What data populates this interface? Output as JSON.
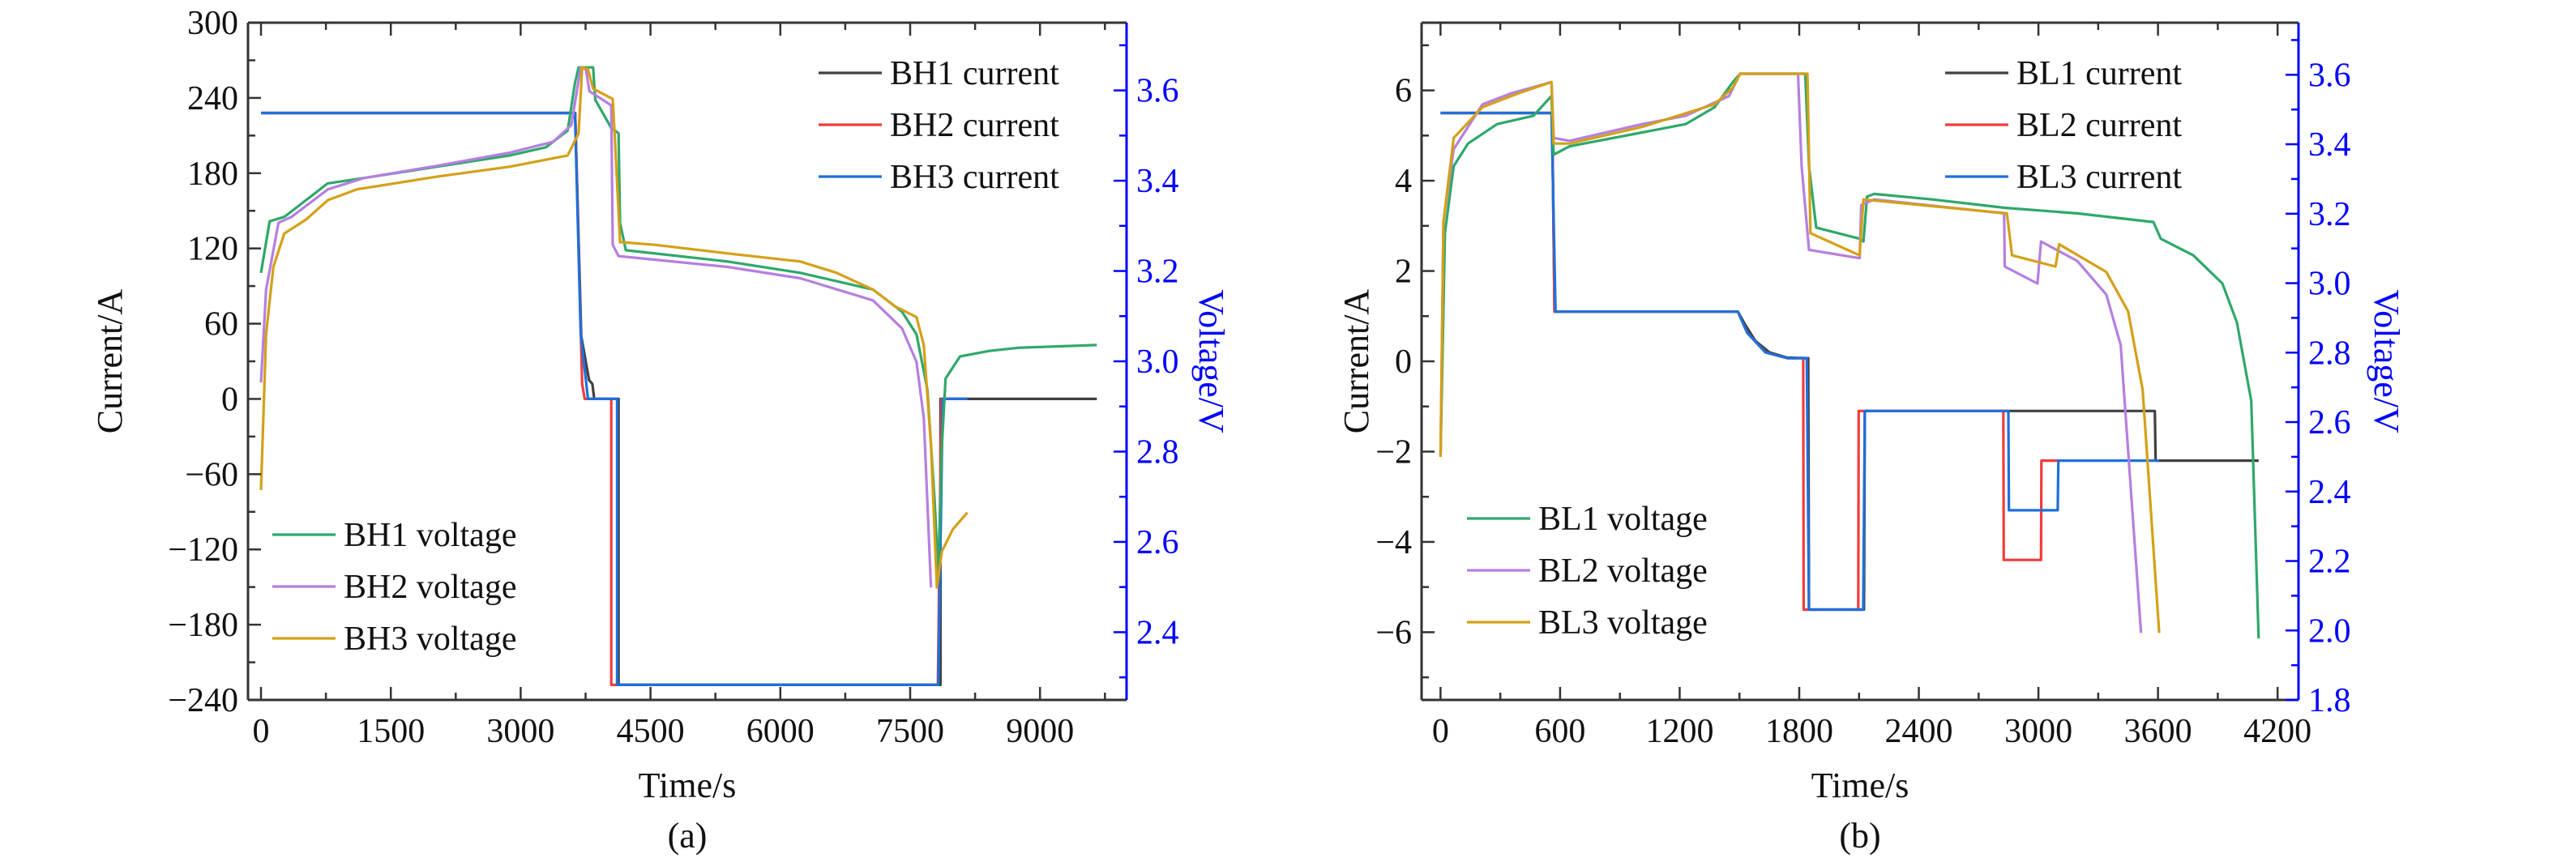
{
  "colors": {
    "right_axis": "#0000ff"
  },
  "chart_data": [
    {
      "type": "line",
      "caption": "(a)",
      "xlabel": "Time/s",
      "ylabel": "Current/A",
      "y2label": "Voltage/V",
      "xlim": [
        -150,
        10000
      ],
      "ylim": [
        -240,
        300
      ],
      "y2lim": [
        2.25,
        3.75
      ],
      "xticks": [
        0,
        1500,
        3000,
        4500,
        6000,
        7500,
        9000
      ],
      "xticklabels": [
        "0",
        "1500",
        "3000",
        "4500",
        "6000",
        "7500",
        "9000"
      ],
      "yticks": [
        -240,
        -180,
        -120,
        -60,
        0,
        60,
        120,
        180,
        240,
        300
      ],
      "yticklabels": [
        "−240",
        "−180",
        "−120",
        "−60",
        "0",
        "60",
        "120",
        "180",
        "240",
        "300"
      ],
      "y2ticks": [
        2.4,
        2.6,
        2.8,
        3.0,
        3.2,
        3.4,
        3.6
      ],
      "y2ticklabels": [
        "2.4",
        "2.6",
        "2.8",
        "3.0",
        "3.2",
        "3.4",
        "3.6"
      ],
      "xminor": 750,
      "yminor": 30,
      "y2minor": 0.1,
      "grid": false,
      "legend_current": "top-right",
      "legend_voltage": "bottom-left",
      "series": [
        {
          "name": "BH1 current",
          "axis": "left",
          "color": "#404040",
          "x": [
            0,
            3630,
            3700,
            3790,
            3829,
            3850,
            4131,
            4131,
            7850,
            7850,
            9656
          ],
          "y": [
            228,
            228,
            50,
            15,
            12,
            0,
            0,
            -228,
            -228,
            0,
            0
          ]
        },
        {
          "name": "BH2 current",
          "axis": "left",
          "color": "#f03c3c",
          "x": [
            0,
            3630,
            3711,
            3740,
            4047,
            4047,
            7820,
            7860,
            8161
          ],
          "y": [
            228,
            228,
            12,
            0,
            0,
            -228,
            -228,
            0,
            0
          ]
        },
        {
          "name": "BH3 current",
          "axis": "left",
          "color": "#1f6fdb",
          "x": [
            0,
            3627,
            3694,
            3778,
            4114,
            4114,
            7825,
            7876,
            8161
          ],
          "y": [
            228,
            228,
            52,
            0,
            0,
            -228,
            -228,
            0,
            0
          ]
        },
        {
          "name": "BH1 voltage",
          "axis": "right",
          "color": "#2ea86a",
          "x": [
            0,
            100,
            270,
            770,
            1192,
            2032,
            2872,
            3291,
            3543,
            3627,
            3669,
            3837,
            3862,
            4047,
            4131,
            4148,
            4215,
            5390,
            6230,
            7070,
            7405,
            7573,
            7699,
            7783,
            7825,
            7867,
            7909,
            8077,
            8413,
            8749,
            9656
          ],
          "y": [
            3.196,
            3.31,
            3.32,
            3.394,
            3.406,
            3.431,
            3.456,
            3.474,
            3.511,
            3.616,
            3.651,
            3.651,
            3.579,
            3.517,
            3.505,
            3.307,
            3.246,
            3.221,
            3.196,
            3.159,
            3.11,
            3.06,
            2.937,
            2.69,
            2.53,
            2.814,
            2.962,
            3.011,
            3.023,
            3.03,
            3.036
          ]
        },
        {
          "name": "BH2 voltage",
          "axis": "right",
          "color": "#b57fe0",
          "x": [
            0,
            59,
            202,
            353,
            773,
            1192,
            2032,
            2872,
            3375,
            3585,
            3694,
            3753,
            3795,
            4047,
            4064,
            4131,
            5390,
            6230,
            7070,
            7405,
            7573,
            7657,
            7741
          ],
          "y": [
            2.953,
            3.159,
            3.307,
            3.32,
            3.381,
            3.406,
            3.433,
            3.462,
            3.486,
            3.523,
            3.651,
            3.647,
            3.598,
            3.567,
            3.258,
            3.233,
            3.209,
            3.184,
            3.135,
            3.073,
            2.999,
            2.875,
            2.499
          ]
        },
        {
          "name": "BH3 voltage",
          "axis": "right",
          "color": "#d4a017",
          "x": [
            0,
            59,
            143,
            269,
            520,
            773,
            1108,
            2032,
            2872,
            3543,
            3669,
            3711,
            3778,
            3837,
            4064,
            4089,
            4148,
            4551,
            5390,
            6230,
            6650,
            7070,
            7322,
            7573,
            7657,
            7741,
            7809,
            7867,
            7993,
            8161
          ],
          "y": [
            2.715,
            3.06,
            3.209,
            3.283,
            3.314,
            3.357,
            3.381,
            3.409,
            3.431,
            3.456,
            3.505,
            3.651,
            3.647,
            3.604,
            3.581,
            3.493,
            3.264,
            3.258,
            3.239,
            3.221,
            3.196,
            3.159,
            3.122,
            3.098,
            3.036,
            2.814,
            2.499,
            2.579,
            2.628,
            2.665
          ]
        }
      ]
    },
    {
      "type": "line",
      "caption": "(b)",
      "xlabel": "Time/s",
      "ylabel": "Current/A",
      "y2label": "Voltage/V",
      "xlim": [
        -95,
        4305
      ],
      "ylim": [
        -7.5,
        7.5
      ],
      "y2lim": [
        1.8,
        3.75
      ],
      "xticks": [
        0,
        600,
        1200,
        1800,
        2400,
        3000,
        3600,
        4200
      ],
      "xticklabels": [
        "0",
        "600",
        "1200",
        "1800",
        "2400",
        "3000",
        "3600",
        "4200"
      ],
      "yticks": [
        -6,
        -4,
        -2,
        0,
        2,
        4,
        6
      ],
      "yticklabels": [
        "−6",
        "−4",
        "−2",
        "0",
        "2",
        "4",
        "6"
      ],
      "y2ticks": [
        1.8,
        2.0,
        2.2,
        2.4,
        2.6,
        2.8,
        3.0,
        3.2,
        3.4,
        3.6
      ],
      "y2ticklabels": [
        "1.8",
        "2.0",
        "2.2",
        "2.4",
        "2.6",
        "2.8",
        "3.0",
        "3.2",
        "3.4",
        "3.6"
      ],
      "xminor": 300,
      "yminor": 1,
      "y2minor": 0.1,
      "grid": false,
      "legend_current": "top-right",
      "legend_voltage": "bottom-left",
      "series": [
        {
          "name": "BL1 current",
          "axis": "left",
          "color": "#404040",
          "x": [
            0,
            560,
            572,
            1492,
            1530,
            1580,
            1650,
            1740,
            1845,
            1849,
            2125,
            2129,
            3584,
            3588,
            4105
          ],
          "y": [
            5.5,
            5.5,
            1.1,
            1.1,
            0.8,
            0.45,
            0.2,
            0.08,
            0.07,
            -5.5,
            -5.5,
            -1.1,
            -1.1,
            -2.2,
            -2.2
          ]
        },
        {
          "name": "BL2 current",
          "axis": "left",
          "color": "#f03c3c",
          "x": [
            0,
            560,
            572,
            1492,
            1539,
            1630,
            1740,
            1820,
            1822,
            2096,
            2098,
            2824,
            2826,
            3013,
            3015,
            3100
          ],
          "y": [
            5.5,
            5.5,
            1.1,
            1.1,
            0.63,
            0.2,
            0.07,
            0.07,
            -5.5,
            -5.5,
            -1.1,
            -1.1,
            -4.4,
            -4.4,
            -2.2,
            -2.2
          ]
        },
        {
          "name": "BL3 current",
          "axis": "left",
          "color": "#1f6fdb",
          "x": [
            0,
            557,
            577,
            1492,
            1539,
            1630,
            1740,
            1838,
            1849,
            2121,
            2129,
            2849,
            2852,
            3097,
            3100,
            3606
          ],
          "y": [
            5.5,
            5.5,
            1.1,
            1.1,
            0.63,
            0.2,
            0.07,
            0.07,
            -5.5,
            -5.5,
            -1.1,
            -1.1,
            -3.3,
            -3.3,
            -2.2,
            -2.2
          ]
        },
        {
          "name": "BL1 voltage",
          "axis": "right",
          "color": "#2ea86a",
          "x": [
            0,
            22,
            66,
            138,
            284,
            466,
            557,
            568,
            648,
            1012,
            1230,
            1376,
            1467,
            1503,
            1830,
            1849,
            1885,
            2103,
            2122,
            2140,
            2176,
            2467,
            2831,
            3195,
            3577,
            3614,
            3777,
            3923,
            3996,
            4068,
            4105
          ],
          "y": [
            2.5,
            3.144,
            3.337,
            3.402,
            3.458,
            3.482,
            3.539,
            3.37,
            3.394,
            3.434,
            3.458,
            3.507,
            3.579,
            3.603,
            3.603,
            3.338,
            3.16,
            3.128,
            3.12,
            3.249,
            3.257,
            3.241,
            3.217,
            3.201,
            3.176,
            3.128,
            3.08,
            2.999,
            2.887,
            2.661,
            1.977
          ]
        },
        {
          "name": "BL2 voltage",
          "axis": "right",
          "color": "#b57fe0",
          "x": [
            0,
            15,
            66,
            211,
            357,
            557,
            568,
            648,
            1012,
            1230,
            1448,
            1503,
            1794,
            1812,
            1849,
            2103,
            2111,
            2176,
            2828,
            2831,
            2995,
            3013,
            3195,
            3341,
            3413,
            3468,
            3515
          ],
          "y": [
            2.5,
            3.177,
            3.386,
            3.515,
            3.547,
            3.579,
            3.418,
            3.41,
            3.458,
            3.482,
            3.539,
            3.603,
            3.603,
            3.338,
            3.096,
            3.072,
            3.225,
            3.241,
            3.201,
            3.048,
            2.999,
            3.12,
            3.064,
            2.967,
            2.822,
            2.371,
            1.993
          ]
        },
        {
          "name": "BL3 voltage",
          "axis": "right",
          "color": "#d4a017",
          "x": [
            0,
            15,
            66,
            211,
            393,
            557,
            568,
            648,
            1012,
            1376,
            1467,
            1503,
            1841,
            1856,
            2103,
            2122,
            2842,
            2868,
            3086,
            3104,
            3341,
            3450,
            3523,
            3606
          ],
          "y": [
            2.5,
            3.177,
            3.418,
            3.507,
            3.547,
            3.579,
            3.402,
            3.402,
            3.45,
            3.515,
            3.563,
            3.603,
            3.603,
            3.144,
            3.08,
            3.241,
            3.201,
            3.08,
            3.048,
            3.112,
            3.032,
            2.919,
            2.693,
            1.993
          ]
        }
      ]
    }
  ]
}
